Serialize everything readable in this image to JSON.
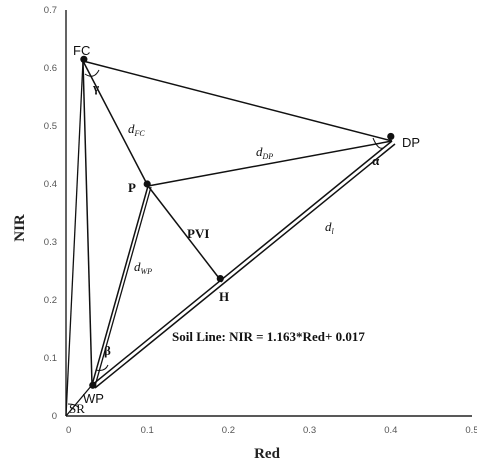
{
  "axes": {
    "xlabel": "Red",
    "ylabel": "NIR",
    "xlim": [
      0,
      0.5
    ],
    "ylim": [
      0,
      0.7
    ],
    "x_ticks": [
      "0",
      "0.1",
      "0.2",
      "0.3",
      "0.4",
      "0.5"
    ],
    "y_ticks": [
      "0",
      "0.1",
      "0.2",
      "0.3",
      "0.4",
      "0.5",
      "0.6",
      "0.7"
    ]
  },
  "points": {
    "FC": {
      "label": "FC",
      "x": 0.022,
      "y": 0.615
    },
    "DP": {
      "label": "DP",
      "x": 0.4,
      "y": 0.482
    },
    "P": {
      "label": "P",
      "x": 0.1,
      "y": 0.4
    },
    "H": {
      "label": "H",
      "x": 0.19,
      "y": 0.237
    },
    "WP": {
      "label": "WP",
      "x": 0.033,
      "y": 0.053
    },
    "SR": {
      "label": "SR",
      "x": 0.0,
      "y": 0.0
    }
  },
  "distances": {
    "d_fc": {
      "base": "d",
      "sub": "FC"
    },
    "d_dp": {
      "base": "d",
      "sub": "DP"
    },
    "d_wp": {
      "base": "d",
      "sub": "WP"
    },
    "d_l": {
      "base": "d",
      "sub": "l"
    }
  },
  "pvi_label": "PVI",
  "angles": {
    "alpha": "α",
    "beta": "β",
    "gamma": "γ"
  },
  "soil_line_label": "Soil Line: NIR = 1.163*Red+ 0.017"
}
